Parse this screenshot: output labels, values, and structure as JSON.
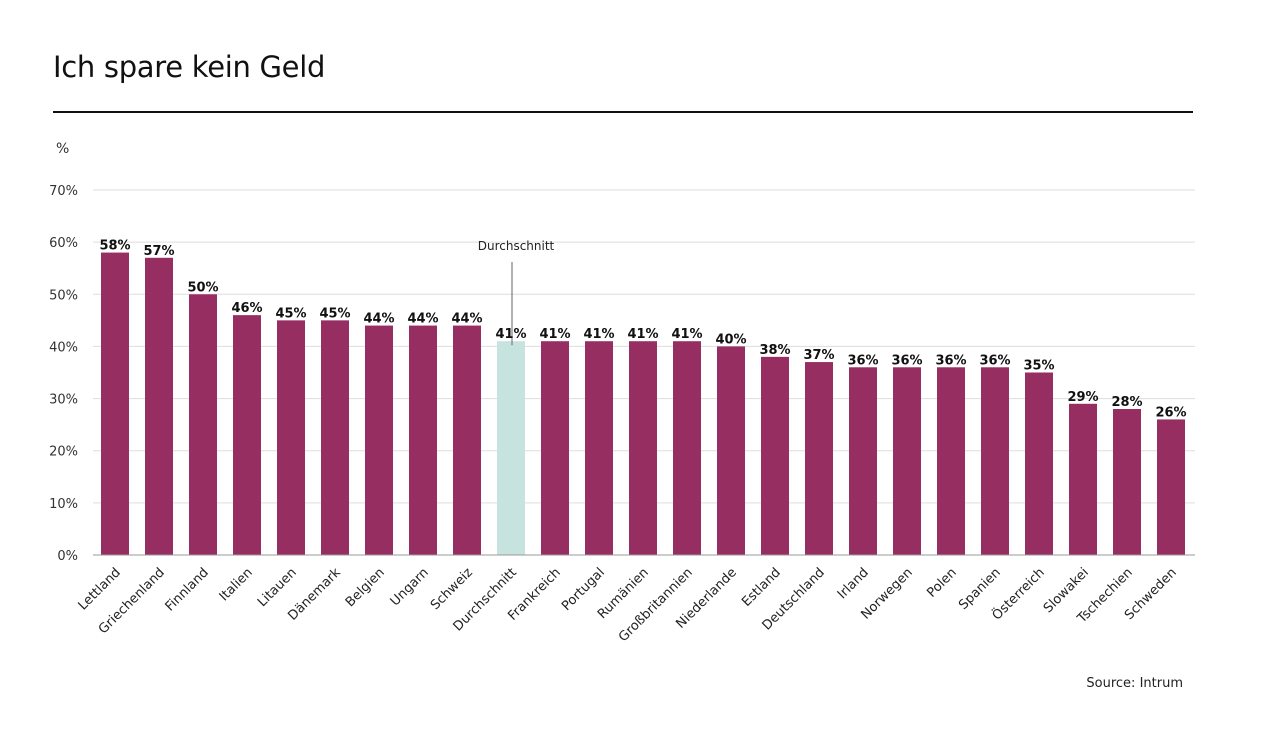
{
  "header": {
    "title": "Ich spare kein Geld"
  },
  "footer": {
    "source": "Source: Intrum"
  },
  "colors": {
    "bar": "#962e61",
    "highlight": "#c6e3e0",
    "grid": "#dddddd",
    "axis": "#999999"
  },
  "chart_data": {
    "type": "bar",
    "title": "Ich spare kein Geld",
    "ylabel": "%",
    "xlabel": "",
    "ylim": [
      0,
      70
    ],
    "yticks": [
      0,
      10,
      20,
      30,
      40,
      50,
      60,
      70
    ],
    "ytick_labels": [
      "0%",
      "10%",
      "20%",
      "30%",
      "40%",
      "50%",
      "60%",
      "70%"
    ],
    "grid": true,
    "categories": [
      "Lettland",
      "Griechenland",
      "Finnland",
      "Italien",
      "Litauen",
      "Dänemark",
      "Belgien",
      "Ungarn",
      "Schweiz",
      "Durchschnitt",
      "Frankreich",
      "Portugal",
      "Rumänien",
      "Großbritannien",
      "Niederlande",
      "Estland",
      "Deutschland",
      "Irland",
      "Norwegen",
      "Polen",
      "Spanien",
      "Österreich",
      "Slowakei",
      "Tschechien",
      "Schweden"
    ],
    "values": [
      58,
      57,
      50,
      46,
      45,
      45,
      44,
      44,
      44,
      41,
      41,
      41,
      41,
      41,
      40,
      38,
      37,
      36,
      36,
      36,
      36,
      35,
      29,
      28,
      26
    ],
    "data_labels": [
      "58%",
      "57%",
      "50%",
      "46%",
      "45%",
      "45%",
      "44%",
      "44%",
      "44%",
      "41%",
      "41%",
      "41%",
      "41%",
      "41%",
      "40%",
      "38%",
      "37%",
      "36%",
      "36%",
      "36%",
      "36%",
      "35%",
      "29%",
      "28%",
      "26%"
    ],
    "highlight_category": "Durchschnitt",
    "annotation": {
      "text": "Durchschnitt",
      "category": "Durchschnitt"
    }
  }
}
